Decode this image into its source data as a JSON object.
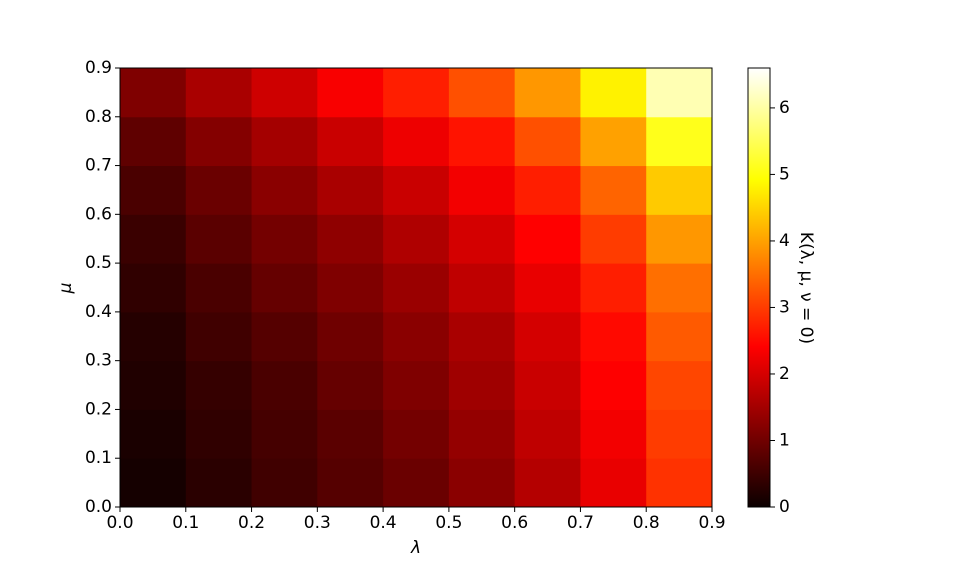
{
  "chart_data": {
    "type": "heatmap",
    "xlabel": "λ",
    "ylabel": "μ",
    "colormap": "hot",
    "x": [
      0.05,
      0.15,
      0.25,
      0.35,
      0.45,
      0.55,
      0.65,
      0.75,
      0.85
    ],
    "y": [
      0.05,
      0.15,
      0.25,
      0.35,
      0.45,
      0.55,
      0.65,
      0.75,
      0.85
    ],
    "values": [
      [
        0.1,
        0.3,
        0.5,
        0.7,
        0.9,
        1.2,
        1.6,
        2.1,
        2.9
      ],
      [
        0.15,
        0.35,
        0.55,
        0.75,
        1.0,
        1.3,
        1.7,
        2.2,
        3.0
      ],
      [
        0.2,
        0.4,
        0.6,
        0.85,
        1.1,
        1.4,
        1.8,
        2.3,
        3.1
      ],
      [
        0.25,
        0.5,
        0.7,
        0.95,
        1.2,
        1.5,
        1.9,
        2.5,
        3.3
      ],
      [
        0.35,
        0.6,
        0.85,
        1.1,
        1.35,
        1.7,
        2.1,
        2.7,
        3.5
      ],
      [
        0.45,
        0.75,
        1.0,
        1.25,
        1.55,
        1.9,
        2.35,
        3.0,
        3.9
      ],
      [
        0.6,
        0.9,
        1.2,
        1.5,
        1.8,
        2.2,
        2.7,
        3.4,
        4.4
      ],
      [
        0.8,
        1.15,
        1.45,
        1.8,
        2.15,
        2.6,
        3.2,
        4.0,
        5.1
      ],
      [
        1.1,
        1.5,
        1.85,
        2.25,
        2.7,
        3.2,
        3.9,
        4.8,
        6.1
      ]
    ],
    "xlim": [
      0,
      0.9
    ],
    "ylim": [
      0,
      0.9
    ],
    "xticks": [
      {
        "value": 0,
        "label": "0.0"
      },
      0.1,
      0.2,
      0.3,
      0.4,
      0.5,
      0.6,
      0.7,
      0.8,
      0.9
    ],
    "yticks": [
      {
        "value": 0,
        "label": "0.0"
      },
      0.1,
      0.2,
      0.3,
      0.4,
      0.5,
      0.6,
      0.7,
      0.8,
      0.9
    ],
    "colorbar": {
      "label": "K(λ, μ, ν = 0)",
      "lim": [
        0,
        6.6
      ],
      "ticks": [
        0,
        1,
        2,
        3,
        4,
        5,
        6
      ]
    }
  }
}
